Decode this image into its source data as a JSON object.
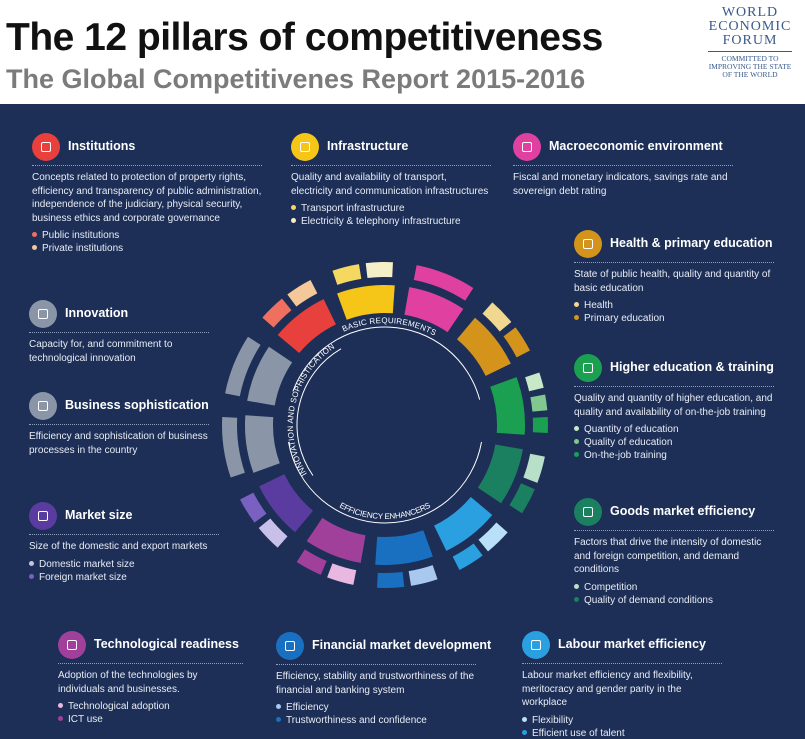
{
  "header": {
    "title": "The 12 pillars of competitiveness",
    "subtitle": "The Global Competitivenes Report 2015-2016"
  },
  "logo": {
    "lines": [
      "WORLD",
      "ECONOMIC",
      "FORUM"
    ],
    "tagline": [
      "COMMITTED TO",
      "IMPROVING THE STATE",
      "OF THE WORLD"
    ]
  },
  "ring_labels": {
    "basic": "BASIC REQUIREMENTS",
    "efficiency": "EFFICIENCY ENHANCERS",
    "innovation": "INNOVATION AND SOPHISTICATION"
  },
  "pillars": [
    {
      "title": "Institutions",
      "description": "Concepts related to protection of property rights, efficiency and transparency of public administration, independence of the judiciary, physical security, business ethics and corporate governance",
      "items": [
        "Public institutions",
        "Private institutions"
      ]
    },
    {
      "title": "Infrastructure",
      "description": "Quality and availability of transport, electricity and communication infrastructures",
      "items": [
        "Transport infrastructure",
        "Electricity & telephony infrastructure"
      ]
    },
    {
      "title": "Macroeconomic environment",
      "description": "Fiscal and monetary indicators, savings rate and sovereign debt rating",
      "items": []
    },
    {
      "title": "Health & primary education",
      "description": "State of public health, quality and quantity of basic education",
      "items": [
        "Health",
        "Primary education"
      ]
    },
    {
      "title": "Innovation",
      "description": "Capacity for, and commitment to technological innovation",
      "items": []
    },
    {
      "title": "Business sophistication",
      "description": "Efficiency and sophistication of business processes in the country",
      "items": []
    },
    {
      "title": "Higher education & training",
      "description": "Quality and quantity of higher education, and quality and availability of on-the-job training",
      "items": [
        "Quantity of education",
        "Quality of education",
        "On-the-job training"
      ]
    },
    {
      "title": "Market size",
      "description": "Size of the domestic and export markets",
      "items": [
        "Domestic market size",
        "Foreign market size"
      ]
    },
    {
      "title": "Goods market efficiency",
      "description": "Factors that drive the intensity of domestic and foreign competition, and demand conditions",
      "items": [
        "Competition",
        "Quality of demand conditions"
      ]
    },
    {
      "title": "Technological readiness",
      "description": "Adoption of the technologies by individuals and businesses.",
      "items": [
        "Technological adoption",
        "ICT use"
      ]
    },
    {
      "title": "Financial market development",
      "description": "Efficiency, stability and trustworthiness of the financial and banking system",
      "items": [
        "Efficiency",
        "Trustworthiness and confidence"
      ]
    },
    {
      "title": "Labour market efficiency",
      "description": "Labour market efficiency and flexibility, meritocracy and gender parity in the workplace",
      "items": [
        "Flexibility",
        "Efficient use of talent"
      ]
    }
  ]
}
